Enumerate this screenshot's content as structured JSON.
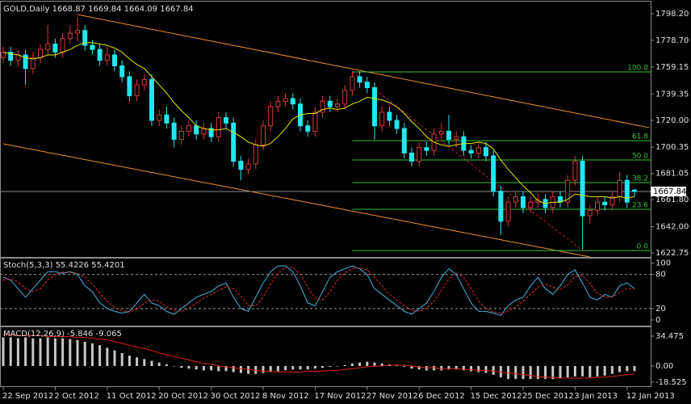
{
  "chart_data": [
    {
      "type": "candlestick",
      "title": "GOLD,Daily",
      "dates": [
        "22 Sep 2012",
        null,
        null,
        null,
        null,
        null,
        null,
        "2 Oct 2012",
        null,
        null,
        null,
        null,
        null,
        null,
        "11 Oct 2012",
        null,
        null,
        null,
        null,
        null,
        null,
        "20 Oct 2012",
        null,
        null,
        null,
        null,
        null,
        null,
        "30 Oct 2012",
        null,
        null,
        null,
        null,
        null,
        null,
        "8 Nov 2012",
        null,
        null,
        null,
        null,
        null,
        null,
        "17 Nov 2012",
        null,
        null,
        null,
        null,
        null,
        null,
        "27 Nov 2012",
        null,
        null,
        null,
        null,
        null,
        null,
        "6 Dec 2012",
        null,
        null,
        null,
        null,
        null,
        null,
        "15 Dec 2012",
        null,
        null,
        null,
        null,
        null,
        null,
        "25 Dec 2012",
        null,
        null,
        null,
        null,
        null,
        null,
        "3 Jan 2013",
        null,
        null,
        null,
        null,
        null,
        null,
        "12 Jan 2013",
        null
      ],
      "open": [
        1766,
        1770,
        1764,
        1768,
        1758,
        1766,
        1772,
        1776,
        1770,
        1780,
        1784,
        1786,
        1775,
        1772,
        1764,
        1768,
        1760,
        1752,
        1738,
        1746,
        1750,
        1720,
        1724,
        1718,
        1706,
        1712,
        1716,
        1710,
        1714,
        1708,
        1722,
        1718,
        1690,
        1684,
        1688,
        1702,
        1716,
        1730,
        1734,
        1736,
        1732,
        1716,
        1712,
        1726,
        1734,
        1730,
        1732,
        1742,
        1752,
        1748,
        1744,
        1716,
        1726,
        1720,
        1714,
        1696,
        1690,
        1700,
        1698,
        1710,
        1712,
        1706,
        1708,
        1698,
        1696,
        1700,
        1694,
        1668,
        1646,
        1660,
        1664,
        1656,
        1660,
        1662,
        1656,
        1664,
        1660,
        1676,
        1690,
        1650,
        1654,
        1660,
        1658,
        1664,
        1676,
        1668.87
      ],
      "high": [
        1774,
        1774,
        1772,
        1772,
        1770,
        1776,
        1790,
        1780,
        1784,
        1790,
        1796,
        1790,
        1779,
        1776,
        1774,
        1772,
        1764,
        1756,
        1750,
        1754,
        1754,
        1728,
        1730,
        1722,
        1716,
        1720,
        1720,
        1718,
        1718,
        1726,
        1726,
        1722,
        1694,
        1692,
        1706,
        1720,
        1734,
        1738,
        1740,
        1740,
        1736,
        1720,
        1730,
        1738,
        1738,
        1736,
        1746,
        1756,
        1756,
        1752,
        1748,
        1730,
        1730,
        1724,
        1718,
        1700,
        1704,
        1704,
        1714,
        1718,
        1724,
        1712,
        1712,
        1702,
        1704,
        1704,
        1698,
        1672,
        1664,
        1668,
        1668,
        1664,
        1666,
        1666,
        1668,
        1668,
        1680,
        1694,
        1694,
        1658,
        1664,
        1664,
        1668,
        1682,
        1680,
        1669.84
      ],
      "low": [
        1762,
        1760,
        1760,
        1746,
        1754,
        1762,
        1768,
        1766,
        1766,
        1776,
        1778,
        1771,
        1768,
        1760,
        1760,
        1756,
        1748,
        1734,
        1734,
        1742,
        1716,
        1716,
        1714,
        1700,
        1702,
        1708,
        1706,
        1706,
        1704,
        1704,
        1714,
        1686,
        1676,
        1680,
        1684,
        1698,
        1712,
        1726,
        1730,
        1728,
        1712,
        1708,
        1708,
        1722,
        1726,
        1726,
        1728,
        1738,
        1744,
        1740,
        1706,
        1712,
        1716,
        1710,
        1692,
        1686,
        1686,
        1694,
        1694,
        1706,
        1702,
        1700,
        1694,
        1692,
        1692,
        1690,
        1664,
        1636,
        1642,
        1656,
        1652,
        1652,
        1656,
        1652,
        1652,
        1656,
        1656,
        1672,
        1625,
        1644,
        1650,
        1654,
        1654,
        1660,
        1656,
        1664.09
      ],
      "close": [
        1770,
        1764,
        1768,
        1758,
        1766,
        1772,
        1776,
        1770,
        1780,
        1784,
        1786,
        1775,
        1772,
        1764,
        1768,
        1760,
        1752,
        1738,
        1746,
        1750,
        1720,
        1724,
        1718,
        1706,
        1712,
        1716,
        1710,
        1714,
        1708,
        1722,
        1718,
        1690,
        1684,
        1688,
        1702,
        1716,
        1730,
        1734,
        1736,
        1732,
        1716,
        1712,
        1726,
        1734,
        1730,
        1732,
        1742,
        1752,
        1748,
        1744,
        1716,
        1726,
        1720,
        1714,
        1696,
        1690,
        1700,
        1698,
        1710,
        1712,
        1706,
        1708,
        1698,
        1696,
        1700,
        1694,
        1668,
        1646,
        1660,
        1664,
        1656,
        1660,
        1662,
        1656,
        1664,
        1660,
        1676,
        1690,
        1650,
        1654,
        1660,
        1658,
        1664,
        1676,
        1660,
        1667.84
      ],
      "up_color": "#000000",
      "up_line": "#d83a3a",
      "down_color": "#22e6f0",
      "down_line": "#22e6f0",
      "ma": {
        "color": "#e6e600",
        "values": [
          1770,
          1769,
          1768,
          1766,
          1765,
          1766,
          1768,
          1768,
          1770,
          1772,
          1775,
          1777,
          1777,
          1776,
          1775,
          1773,
          1770,
          1765,
          1761,
          1758,
          1752,
          1746,
          1740,
          1733,
          1727,
          1722,
          1716,
          1714,
          1713,
          1713,
          1714,
          1711,
          1708,
          1704,
          1702,
          1701,
          1703,
          1708,
          1714,
          1721,
          1724,
          1725,
          1725,
          1728,
          1729,
          1728,
          1729,
          1732,
          1734,
          1737,
          1736,
          1735,
          1733,
          1730,
          1725,
          1719,
          1714,
          1708,
          1704,
          1702,
          1701,
          1702,
          1703,
          1703,
          1704,
          1703,
          1699,
          1691,
          1684,
          1678,
          1672,
          1667,
          1661,
          1659,
          1660,
          1660,
          1662,
          1666,
          1665,
          1664,
          1664,
          1664,
          1663,
          1664,
          1663,
          1664
        ]
      },
      "channel": {
        "color": "#f0902a",
        "lines": [
          {
            "x": [
              10,
              87
            ],
            "y": [
              1797.6,
              1714.6
            ]
          },
          {
            "x": [
              0,
              79
            ],
            "y": [
              1702.8,
              1619.8
            ]
          }
        ]
      },
      "fibonacci": {
        "color": "#2fc42f",
        "line_color": "#d02020",
        "x": [
          47,
          78
        ],
        "levels": [
          {
            "label": "100.0",
            "value": 1755.5
          },
          {
            "label": "61.8",
            "value": 1705.1
          },
          {
            "label": "50.0",
            "value": 1690.9
          },
          {
            "label": "38.2",
            "value": 1674.3
          },
          {
            "label": "23.6",
            "value": 1654.8
          },
          {
            "label": "0.0",
            "value": 1624.5
          }
        ]
      },
      "price_line_color": "#8a8a8a",
      "ylim": [
        1619.8,
        1807.1
      ],
      "yticks": [
        {
          "value": 1798.2,
          "label": "1798.20"
        },
        {
          "value": 1778.7,
          "label": "1778.70"
        },
        1759.15,
        1739.35,
        {
          "value": 1720,
          "label": "1720.00"
        },
        1700.35,
        1681.05,
        {
          "value": 1661.8,
          "label": "1661.80"
        },
        {
          "value": 1642,
          "label": "1642.00"
        },
        1622.75
      ]
    },
    {
      "type": "line",
      "title": "Stoch(5,3,3)",
      "series": [
        {
          "color": "#45b4e0",
          "values": [
            75,
            70,
            55,
            40,
            55,
            70,
            85,
            85,
            82,
            85,
            80,
            60,
            50,
            30,
            20,
            15,
            12,
            15,
            30,
            45,
            30,
            25,
            15,
            10,
            20,
            30,
            40,
            45,
            50,
            60,
            65,
            40,
            20,
            15,
            40,
            65,
            85,
            95,
            95,
            85,
            60,
            30,
            25,
            50,
            75,
            85,
            90,
            95,
            90,
            80,
            55,
            45,
            35,
            25,
            15,
            10,
            20,
            30,
            50,
            75,
            90,
            80,
            55,
            30,
            15,
            15,
            12,
            8,
            25,
            35,
            40,
            60,
            75,
            55,
            45,
            60,
            80,
            88,
            65,
            40,
            35,
            45,
            40,
            60,
            65,
            55.4226
          ]
        },
        {
          "color": "#e03030",
          "dashed": true,
          "values": [
            70,
            72,
            67,
            55,
            50,
            55,
            70,
            80,
            84,
            84,
            82,
            75,
            63,
            47,
            33,
            22,
            16,
            14,
            19,
            30,
            35,
            33,
            23,
            17,
            15,
            20,
            30,
            38,
            45,
            52,
            58,
            55,
            42,
            25,
            25,
            40,
            63,
            82,
            92,
            92,
            80,
            58,
            38,
            35,
            50,
            70,
            83,
            90,
            92,
            88,
            75,
            60,
            45,
            35,
            25,
            17,
            15,
            20,
            33,
            52,
            72,
            82,
            75,
            55,
            33,
            20,
            14,
            12,
            15,
            23,
            33,
            45,
            58,
            63,
            58,
            53,
            62,
            76,
            78,
            64,
            47,
            40,
            40,
            48,
            55,
            55.4201
          ]
        }
      ],
      "levels": [
        80,
        20
      ],
      "level_color": "#9a9a9a",
      "ylim": [
        -10,
        108
      ],
      "yticks": [
        100,
        80,
        20,
        0
      ]
    },
    {
      "type": "bar",
      "title": "MACD(12,26,9)",
      "color": "#c8c8c8",
      "values": [
        33,
        33,
        32,
        33,
        32,
        32,
        33,
        32,
        32,
        31,
        30,
        28,
        26,
        24,
        21,
        18,
        15,
        12,
        10,
        8,
        6,
        4,
        2,
        0,
        -2,
        -3,
        -4,
        -5,
        -5,
        -6,
        -6,
        -7,
        -8,
        -9,
        -9,
        -8,
        -7,
        -6,
        -5,
        -4,
        -4,
        -4,
        -3,
        -2,
        -1,
        0,
        1,
        3,
        4,
        5,
        4,
        3,
        2,
        1,
        -1,
        -3,
        -4,
        -5,
        -5,
        -5,
        -4,
        -4,
        -5,
        -6,
        -7,
        -8,
        -10,
        -13,
        -15,
        -15,
        -15,
        -15,
        -15,
        -15,
        -15,
        -14,
        -13,
        -12,
        -12,
        -13,
        -12,
        -11,
        -9,
        -7,
        -6,
        -5.846
      ],
      "signal": {
        "color": "#e02020",
        "values": [
          36,
          36,
          35,
          35,
          35,
          35,
          34,
          34,
          34,
          34,
          33,
          33,
          32,
          31,
          30,
          28,
          26,
          24,
          22,
          20,
          18,
          15,
          13,
          11,
          9,
          7,
          5,
          3,
          2,
          0,
          -1,
          -2,
          -3,
          -4,
          -5,
          -6,
          -6,
          -7,
          -7,
          -7,
          -7,
          -6,
          -6,
          -6,
          -5,
          -5,
          -4,
          -3,
          -2,
          -1,
          0,
          0,
          1,
          1,
          1,
          0,
          -1,
          -2,
          -2,
          -3,
          -3,
          -3,
          -4,
          -4,
          -5,
          -5,
          -6,
          -7,
          -8,
          -9,
          -10,
          -11,
          -12,
          -13,
          -13,
          -14,
          -14,
          -14,
          -14,
          -14,
          -13,
          -13,
          -12,
          -11,
          -10,
          -9.065
        ]
      },
      "ylim": [
        -23.3,
        44.7
      ],
      "yticks": [
        34.475,
        {
          "value": 0,
          "label": "0.00"
        },
        -18.525
      ]
    }
  ]
}
